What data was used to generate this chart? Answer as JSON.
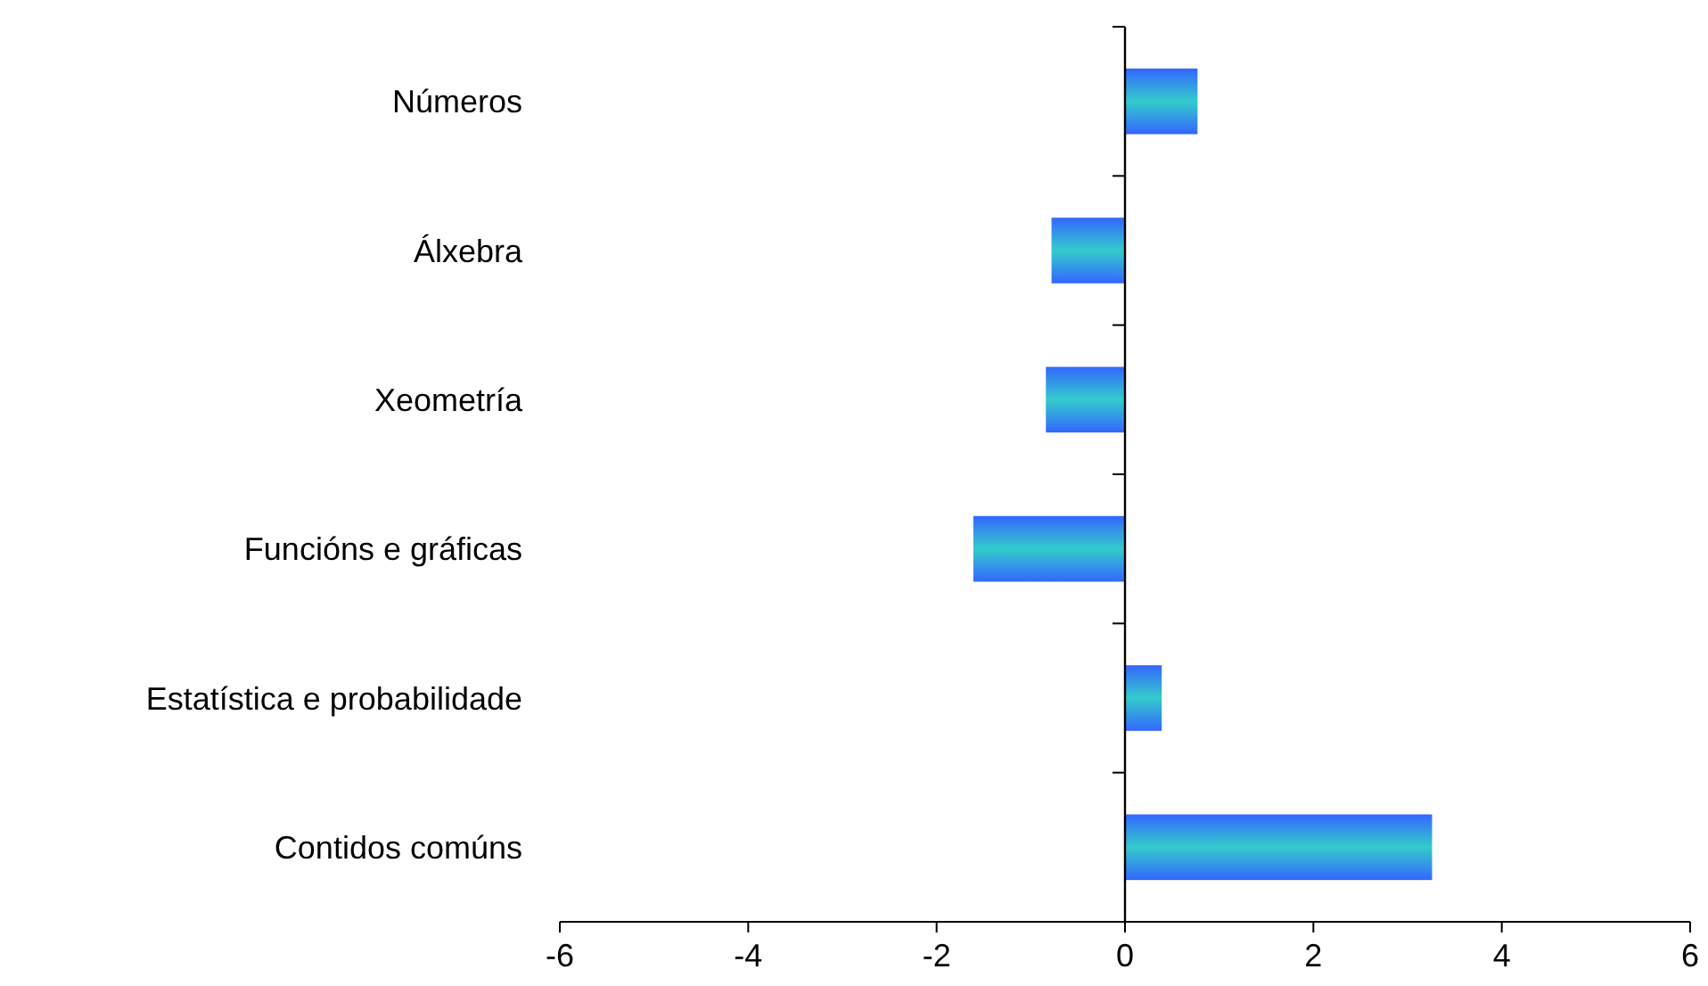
{
  "chart_data": {
    "type": "bar",
    "orientation": "horizontal",
    "categories": [
      "Números",
      "Álxebra",
      "Xeometría",
      "Funcións e gráficas",
      "Estatística e probabilidade",
      "Contidos comúns"
    ],
    "series": [
      {
        "color": "#33cccc",
        "values": [
          0.77,
          -0.78,
          -0.84,
          -1.61,
          0.39,
          3.26
        ]
      }
    ],
    "xlim": [
      -6,
      6
    ],
    "xticks": [
      -6,
      -4,
      -2,
      0,
      2,
      4,
      6
    ]
  }
}
